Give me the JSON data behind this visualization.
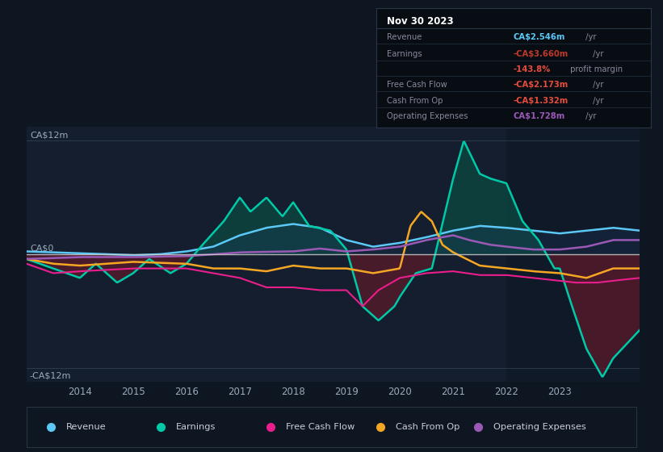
{
  "bg_color": "#0e1621",
  "plot_bg_color": "#141e2e",
  "ylabel_top": "CA$12m",
  "ylabel_bottom": "-CA$12m",
  "ylabel_zero": "CA$0",
  "ylim": [
    -13.5,
    13.5
  ],
  "xlim_start": 2013.0,
  "xlim_end": 2024.5,
  "xticks": [
    2014,
    2015,
    2016,
    2017,
    2018,
    2019,
    2020,
    2021,
    2022,
    2023
  ],
  "colors": {
    "revenue": "#5bc8f5",
    "earnings": "#00c9a7",
    "free_cash_flow": "#e91e8c",
    "cash_from_op": "#f5a623",
    "op_expenses": "#9b59b6",
    "earnings_fill_pos": "#0d4a42",
    "earnings_fill_neg": "#5a1a2a",
    "revenue_fill": "#1a3a5c",
    "zero_line": "#cccccc"
  },
  "legend": [
    {
      "label": "Revenue",
      "color": "#5bc8f5"
    },
    {
      "label": "Earnings",
      "color": "#00c9a7"
    },
    {
      "label": "Free Cash Flow",
      "color": "#e91e8c"
    },
    {
      "label": "Cash From Op",
      "color": "#f5a623"
    },
    {
      "label": "Operating Expenses",
      "color": "#9b59b6"
    }
  ],
  "info_title": "Nov 30 2023",
  "info_rows": [
    {
      "label": "Revenue",
      "value": "CA$2.546m",
      "suffix": " /yr",
      "value_color": "#5bc8f5",
      "label_color": "#888899"
    },
    {
      "label": "Earnings",
      "value": "-CA$3.660m",
      "suffix": " /yr",
      "value_color": "#c0392b",
      "label_color": "#888899"
    },
    {
      "label": "",
      "value": "-143.8%",
      "suffix": " profit margin",
      "value_color": "#e74c3c",
      "label_color": "#888899"
    },
    {
      "label": "Free Cash Flow",
      "value": "-CA$2.173m",
      "suffix": " /yr",
      "value_color": "#e74c3c",
      "label_color": "#888899"
    },
    {
      "label": "Cash From Op",
      "value": "-CA$1.332m",
      "suffix": " /yr",
      "value_color": "#e74c3c",
      "label_color": "#888899"
    },
    {
      "label": "Operating Expenses",
      "value": "CA$1.728m",
      "suffix": " /yr",
      "value_color": "#9b59b6",
      "label_color": "#888899"
    }
  ]
}
